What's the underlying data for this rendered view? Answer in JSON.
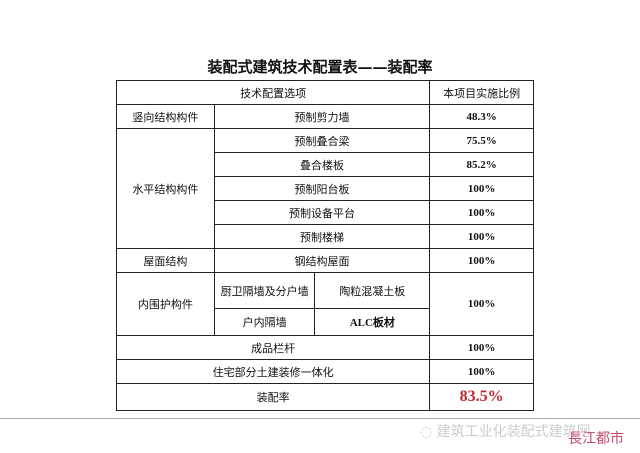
{
  "title": "装配式建筑技术配置表——装配率",
  "header": {
    "option": "技术配置选项",
    "ratio": "本项目实施比例"
  },
  "rows": {
    "vertical": {
      "category": "竖向结构构件",
      "item": "预制剪力墙",
      "ratio": "48.3%"
    },
    "horizontal": {
      "category": "水平结构构件",
      "items": [
        {
          "item": "预制叠合梁",
          "ratio": "75.5%"
        },
        {
          "item": "叠合楼板",
          "ratio": "85.2%"
        },
        {
          "item": "预制阳台板",
          "ratio": "100%"
        },
        {
          "item": "预制设备平台",
          "ratio": "100%"
        },
        {
          "item": "预制楼梯",
          "ratio": "100%"
        }
      ]
    },
    "roof": {
      "category": "屋面结构",
      "item": "钢结构屋面",
      "ratio": "100%"
    },
    "inner": {
      "category": "内围护构件",
      "item1": "厨卫隔墙及分户墙",
      "material1": "陶粒混凝土板",
      "item2": "户内隔墙",
      "material2": "ALC板材",
      "ratio": "100%"
    },
    "railing": {
      "item": "成品栏杆",
      "ratio": "100%"
    },
    "integration": {
      "item": "住宅部分土建装修一体化",
      "ratio": "100%"
    },
    "total": {
      "item": "装配率",
      "ratio": "83.5%",
      "color": "#c0272d"
    }
  },
  "watermark": "建筑工业化装配式建筑网",
  "logo": {
    "mark": "長江都市"
  }
}
